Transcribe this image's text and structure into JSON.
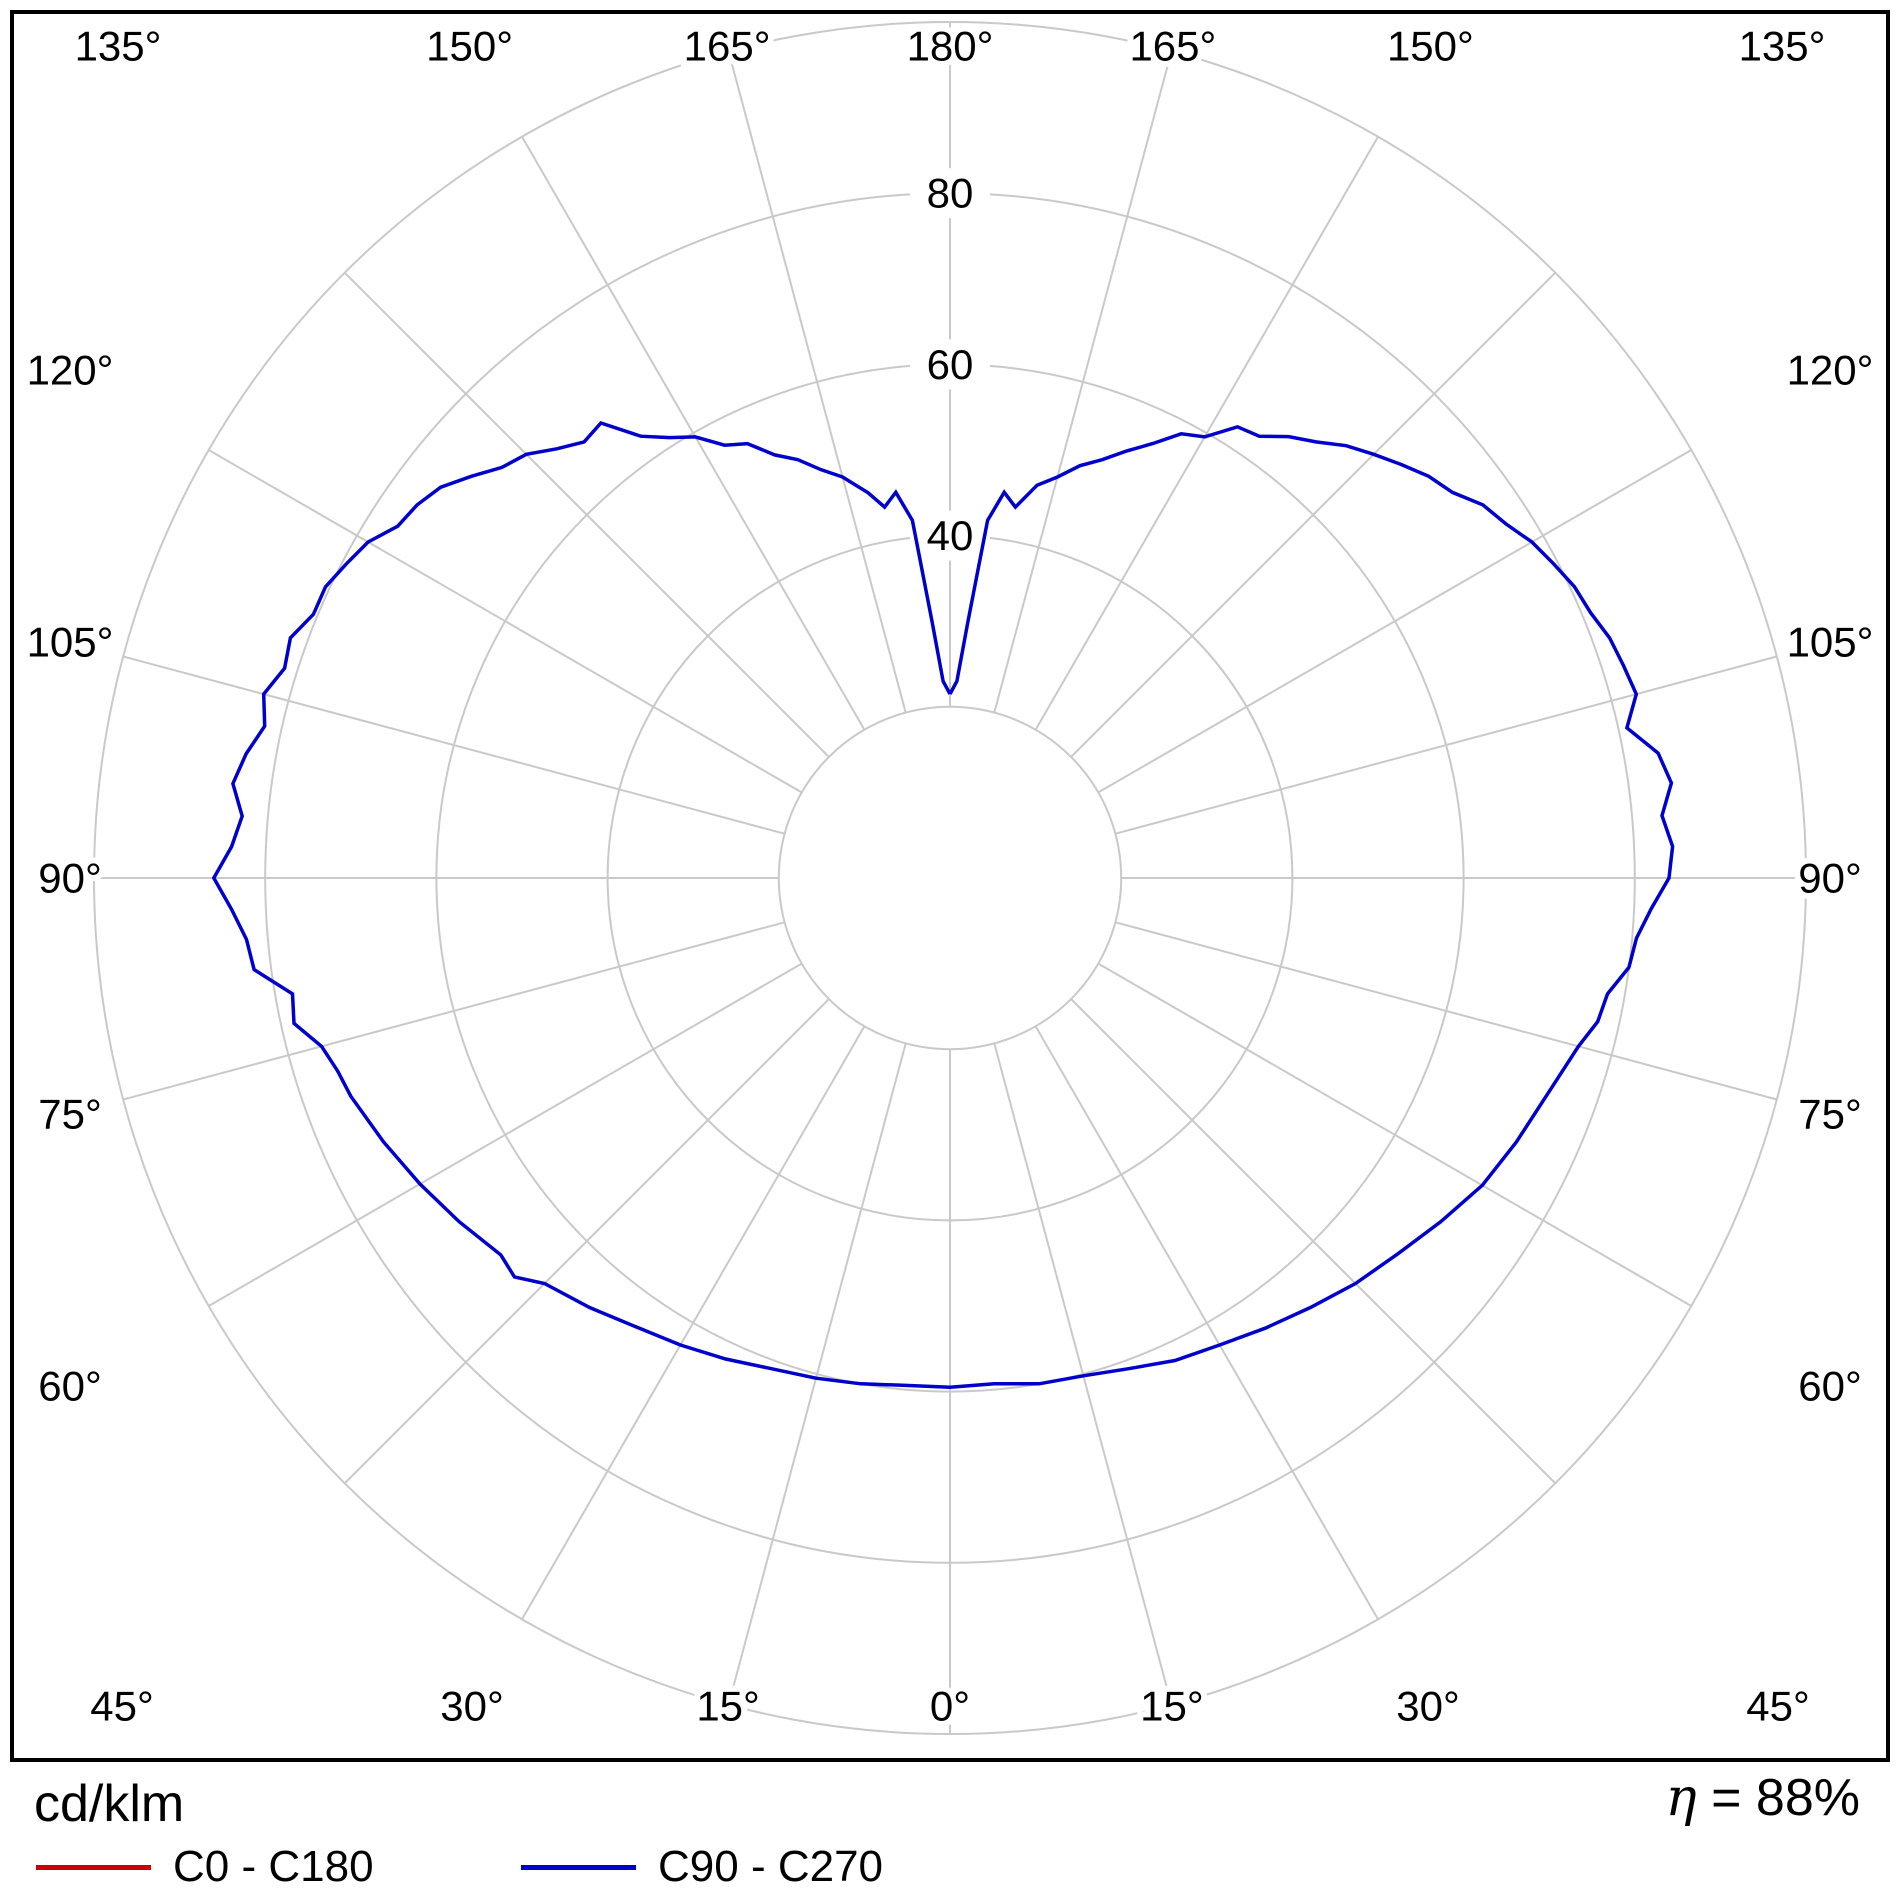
{
  "window": {
    "background": "#ffffff",
    "frame_border_color": "#000000"
  },
  "chart_data": {
    "type": "line",
    "subtype": "polar-photometric-intensity-distribution",
    "title": "",
    "units_label": "cd/klm",
    "efficiency": {
      "symbol": "η",
      "rest": " = 88%"
    },
    "grid_color": "#c9c9c9",
    "radial_axis": {
      "min": 0,
      "max": 100,
      "ring_step": 20,
      "tick_labels": [
        {
          "value": 40,
          "label": "40"
        },
        {
          "value": 60,
          "label": "60"
        },
        {
          "value": 80,
          "label": "80"
        }
      ]
    },
    "angular_axis": {
      "spoke_step_deg": 15,
      "labels": [
        {
          "screen_deg": -165,
          "label": "165°"
        },
        {
          "screen_deg": -150,
          "label": "150°"
        },
        {
          "screen_deg": -135,
          "label": "135°"
        },
        {
          "screen_deg": -120,
          "label": "120°"
        },
        {
          "screen_deg": -105,
          "label": "105°"
        },
        {
          "screen_deg": -90,
          "label": "90°"
        },
        {
          "screen_deg": -75,
          "label": "75°"
        },
        {
          "screen_deg": -60,
          "label": "60°"
        },
        {
          "screen_deg": -45,
          "label": "45°"
        },
        {
          "screen_deg": -30,
          "label": "30°"
        },
        {
          "screen_deg": -15,
          "label": "15°"
        },
        {
          "screen_deg": 0,
          "label": "0°"
        },
        {
          "screen_deg": 15,
          "label": "15°"
        },
        {
          "screen_deg": 30,
          "label": "30°"
        },
        {
          "screen_deg": 45,
          "label": "45°"
        },
        {
          "screen_deg": 60,
          "label": "60°"
        },
        {
          "screen_deg": 75,
          "label": "75°"
        },
        {
          "screen_deg": 90,
          "label": "90°"
        },
        {
          "screen_deg": 105,
          "label": "105°"
        },
        {
          "screen_deg": 120,
          "label": "120°"
        },
        {
          "screen_deg": 135,
          "label": "135°"
        },
        {
          "screen_deg": 150,
          "label": "150°"
        },
        {
          "screen_deg": 165,
          "label": "165°"
        },
        {
          "screen_deg": 180,
          "label": "180°"
        }
      ]
    },
    "series": [
      {
        "name": "C0 - C180",
        "color": "#cc0000",
        "points": []
      },
      {
        "name": "C90 - C270",
        "color": "#0000cc",
        "points": [
          [
            -180,
            21.5
          ],
          [
            -178,
            23
          ],
          [
            -176,
            30
          ],
          [
            -174,
            42
          ],
          [
            -172,
            45.5
          ],
          [
            -170,
            44
          ],
          [
            -168,
            46
          ],
          [
            -165,
            48.5
          ],
          [
            -162.5,
            50
          ],
          [
            -160,
            52
          ],
          [
            -157.5,
            53.5
          ],
          [
            -155,
            56
          ],
          [
            -152.5,
            57
          ],
          [
            -150,
            59.5
          ],
          [
            -147.5,
            61
          ],
          [
            -145,
            63
          ],
          [
            -142.5,
            67
          ],
          [
            -140,
            66.5
          ],
          [
            -137.5,
            68
          ],
          [
            -135,
            70
          ],
          [
            -132.5,
            71
          ],
          [
            -130,
            73
          ],
          [
            -127.5,
            75
          ],
          [
            -125,
            76
          ],
          [
            -122.5,
            76.5
          ],
          [
            -120,
            78.5
          ],
          [
            -117.5,
            79.5
          ],
          [
            -115,
            80.5
          ],
          [
            -112.5,
            80.5
          ],
          [
            -110,
            82
          ],
          [
            -107.5,
            81.5
          ],
          [
            -105,
            83
          ],
          [
            -102.5,
            82
          ],
          [
            -100,
            83.5
          ],
          [
            -97.5,
            84.5
          ],
          [
            -95,
            83
          ],
          [
            -92.5,
            84
          ],
          [
            -90,
            86
          ],
          [
            -87.5,
            84
          ],
          [
            -85,
            82.5
          ],
          [
            -82.5,
            82
          ],
          [
            -80,
            78
          ],
          [
            -77.5,
            78.5
          ],
          [
            -75,
            76
          ],
          [
            -72.5,
            75
          ],
          [
            -70,
            74.5
          ],
          [
            -65,
            73
          ],
          [
            -60,
            71.5
          ],
          [
            -55,
            70
          ],
          [
            -50,
            68.5
          ],
          [
            -47.5,
            69
          ],
          [
            -45,
            67
          ],
          [
            -40,
            65.5
          ],
          [
            -35,
            64
          ],
          [
            -30,
            63
          ],
          [
            -25,
            62
          ],
          [
            -20,
            61
          ],
          [
            -15,
            60.5
          ],
          [
            -10,
            60
          ],
          [
            -5,
            59.5
          ],
          [
            0,
            59.5
          ],
          [
            5,
            59.3
          ],
          [
            10,
            60
          ],
          [
            15,
            60.2
          ],
          [
            20,
            61
          ],
          [
            25,
            62.2
          ],
          [
            30,
            63
          ],
          [
            35,
            64.2
          ],
          [
            40,
            65.5
          ],
          [
            45,
            67
          ],
          [
            50,
            68.3
          ],
          [
            55,
            70
          ],
          [
            60,
            71.8
          ],
          [
            65,
            73
          ],
          [
            70,
            74.2
          ],
          [
            75,
            76
          ],
          [
            77.5,
            77.5
          ],
          [
            80,
            78
          ],
          [
            82.5,
            80
          ],
          [
            85,
            80.5
          ],
          [
            87.5,
            82
          ],
          [
            90,
            84
          ],
          [
            92.5,
            84.5
          ],
          [
            95,
            83.5
          ],
          [
            97.5,
            85
          ],
          [
            100,
            84
          ],
          [
            102.5,
            81
          ],
          [
            105,
            83
          ],
          [
            107.5,
            82.5
          ],
          [
            110,
            82
          ],
          [
            112.5,
            81
          ],
          [
            115,
            80.5
          ],
          [
            117.5,
            79.5
          ],
          [
            120,
            78.5
          ],
          [
            122.5,
            77
          ],
          [
            125,
            76
          ],
          [
            127.5,
            74
          ],
          [
            130,
            73
          ],
          [
            132.5,
            71.5
          ],
          [
            135,
            70
          ],
          [
            137.5,
            68.5
          ],
          [
            140,
            66.5
          ],
          [
            142.5,
            65
          ],
          [
            145,
            63
          ],
          [
            147.5,
            62.5
          ],
          [
            150,
            59.5
          ],
          [
            152.5,
            58.5
          ],
          [
            155,
            56
          ],
          [
            157.5,
            54
          ],
          [
            160,
            52
          ],
          [
            162.5,
            50.5
          ],
          [
            165,
            48.5
          ],
          [
            167.5,
            47
          ],
          [
            170,
            44
          ],
          [
            172,
            45.5
          ],
          [
            174,
            42
          ],
          [
            176,
            30
          ],
          [
            178,
            23
          ],
          [
            180,
            21.5
          ]
        ]
      }
    ]
  },
  "legend": {
    "items": [
      {
        "label": "C0 - C180",
        "color": "#cc0000"
      },
      {
        "label": "C90 - C270",
        "color": "#0000cc"
      }
    ]
  }
}
